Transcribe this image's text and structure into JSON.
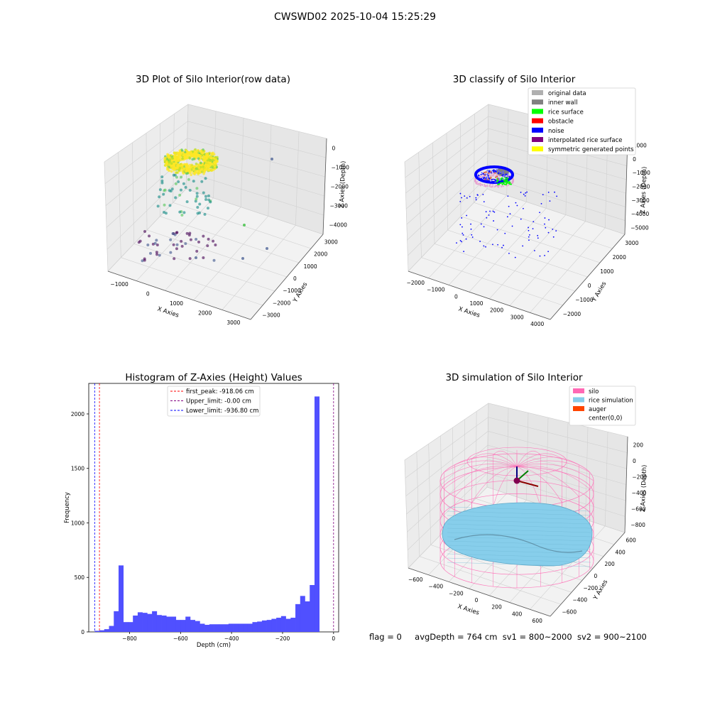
{
  "suptitle": "CWSWD02 2025-10-04 15:25:29",
  "status": {
    "flag": "flag = 0",
    "avg_depth": "avgDepth = 764 cm",
    "sv1": "sv1 = 800~2000",
    "sv2": "sv2 = 900~2100"
  },
  "colors": {
    "rice_surface": "#00ff00",
    "obstacle": "#ff0000",
    "noise": "#0000ff",
    "interpolated": "#800080",
    "symmetric": "#ffff00",
    "original": "#b0b0b0",
    "inner_wall": "#808080",
    "silo": "#ff69b4",
    "rice_sim": "#87ceeb",
    "auger": "#ff4500",
    "hist_bar": "#4d4dff"
  },
  "chart_data": [
    {
      "type": "scatter",
      "title": "3D Plot of Silo Interior(row data)",
      "xlabel": "X Axies",
      "ylabel": "Y Axies",
      "zlabel": "Z Axies (Depth)",
      "x_ticks": [
        "−1000",
        "0",
        "1000",
        "2000",
        "3000"
      ],
      "y_ticks": [
        "−3000",
        "−2000",
        "−1000",
        "0",
        "1000",
        "2000",
        "3000"
      ],
      "z_ticks": [
        "0",
        "−1000",
        "−2000",
        "−3000",
        "−4000"
      ],
      "colormap": "viridis"
    },
    {
      "type": "scatter",
      "title": "3D classify of Silo Interior",
      "xlabel": "X Axies",
      "ylabel": "Y Axies",
      "zlabel": "Z Axies (Depth)",
      "x_ticks": [
        "−2000",
        "−1000",
        "0",
        "1000",
        "2000",
        "3000",
        "4000"
      ],
      "y_ticks": [
        "−2000",
        "−1000",
        "0",
        "1000",
        "2000",
        "3000"
      ],
      "z_ticks": [
        "1000",
        "0",
        "−1000",
        "−2000",
        "−3000",
        "−4000",
        "−5000"
      ],
      "legend": [
        "original data",
        "inner wall",
        "rice surface",
        "obstacle",
        "noise",
        "interpolated rice surface",
        "symmetric generated points"
      ],
      "legend_position": "upper right"
    },
    {
      "type": "bar",
      "title": "Histogram of Z-Axies (Height) Values",
      "xlabel": "Depth (cm)",
      "ylabel": "Frequency",
      "xlim": [
        -960,
        20
      ],
      "ylim": [
        0,
        2280
      ],
      "x_ticks": [
        -800,
        -600,
        -400,
        -200,
        0
      ],
      "x_tick_labels": [
        "−800",
        "−600",
        "−400",
        "−200",
        "0"
      ],
      "y_ticks": [
        0,
        500,
        1000,
        1500,
        2000
      ],
      "bin_start": -936.8,
      "bin_width": 18.74,
      "values": [
        10,
        15,
        25,
        55,
        190,
        610,
        90,
        90,
        150,
        180,
        175,
        165,
        190,
        155,
        150,
        140,
        140,
        110,
        110,
        140,
        110,
        100,
        75,
        65,
        70,
        70,
        70,
        70,
        75,
        75,
        75,
        75,
        75,
        90,
        95,
        105,
        110,
        120,
        130,
        145,
        120,
        130,
        255,
        330,
        280,
        430,
        2160
      ],
      "lines": [
        {
          "label": "first_peak: -918.06 cm",
          "x": -918.06,
          "color": "#ff0000"
        },
        {
          "label": "Upper_limit: -0.00 cm",
          "x": -0.0,
          "color": "#800080"
        },
        {
          "label": "Lower_limit: -936.80 cm",
          "x": -936.8,
          "color": "#0000ff"
        }
      ],
      "legend_position": "upper center"
    },
    {
      "type": "surface",
      "title": "3D simulation of Silo Interior",
      "xlabel": "X Axies",
      "ylabel": "Y Axies",
      "zlabel": "Z Axies (Depth)",
      "x_ticks": [
        "−600",
        "−400",
        "−200",
        "0",
        "200",
        "400",
        "600"
      ],
      "y_ticks": [
        "−600",
        "−400",
        "−200",
        "0",
        "200",
        "400",
        "600"
      ],
      "z_ticks": [
        "200",
        "0",
        "−200",
        "−400",
        "−600",
        "−800"
      ],
      "legend": [
        "silo",
        "rice simulation",
        "auger",
        "center(0,0)"
      ],
      "legend_position": "upper right"
    }
  ]
}
